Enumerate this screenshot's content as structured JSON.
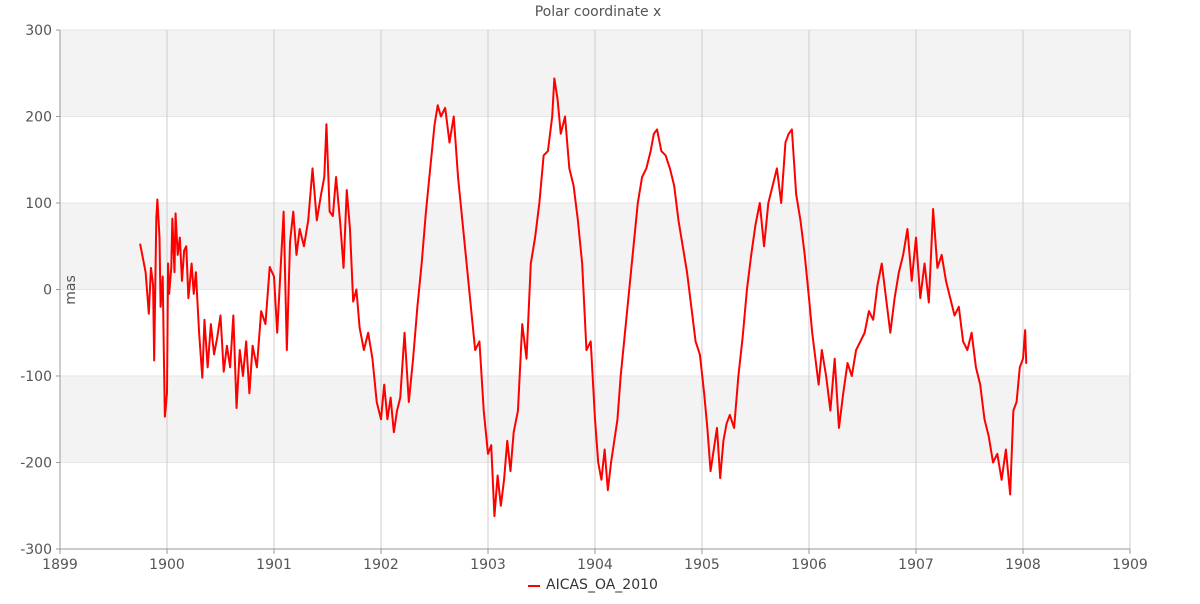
{
  "colors": {
    "series": "#ff0000",
    "band": "#f3f3f3",
    "grid_major": "#cccccc",
    "axis": "#999999"
  },
  "chart_data": {
    "type": "line",
    "title": "Polar coordinate x",
    "xlabel": "",
    "ylabel": "mas",
    "xlim": [
      1899,
      1909
    ],
    "ylim": [
      -300,
      300
    ],
    "x_ticks": [
      1899,
      1900,
      1901,
      1902,
      1903,
      1904,
      1905,
      1906,
      1907,
      1908,
      1909
    ],
    "y_ticks": [
      -300,
      -200,
      -100,
      0,
      100,
      200,
      300
    ],
    "grid": true,
    "alternating_bands": true,
    "legend": "bottom-center",
    "series": [
      {
        "name": "AICAS_OA_2010",
        "color": "#ff0000",
        "points": [
          [
            1899.75,
            52
          ],
          [
            1899.8,
            20
          ],
          [
            1899.83,
            -28
          ],
          [
            1899.85,
            25
          ],
          [
            1899.87,
            5
          ],
          [
            1899.88,
            -82
          ],
          [
            1899.9,
            82
          ],
          [
            1899.91,
            104
          ],
          [
            1899.93,
            60
          ],
          [
            1899.94,
            -20
          ],
          [
            1899.96,
            15
          ],
          [
            1899.97,
            -70
          ],
          [
            1899.98,
            -147
          ],
          [
            1900.0,
            -120
          ],
          [
            1900.01,
            30
          ],
          [
            1900.02,
            -5
          ],
          [
            1900.04,
            25
          ],
          [
            1900.05,
            82
          ],
          [
            1900.07,
            20
          ],
          [
            1900.08,
            88
          ],
          [
            1900.1,
            40
          ],
          [
            1900.12,
            60
          ],
          [
            1900.14,
            10
          ],
          [
            1900.16,
            45
          ],
          [
            1900.18,
            50
          ],
          [
            1900.2,
            -10
          ],
          [
            1900.23,
            30
          ],
          [
            1900.25,
            -5
          ],
          [
            1900.27,
            20
          ],
          [
            1900.3,
            -50
          ],
          [
            1900.33,
            -102
          ],
          [
            1900.35,
            -35
          ],
          [
            1900.38,
            -90
          ],
          [
            1900.41,
            -40
          ],
          [
            1900.44,
            -75
          ],
          [
            1900.47,
            -55
          ],
          [
            1900.5,
            -30
          ],
          [
            1900.53,
            -95
          ],
          [
            1900.56,
            -65
          ],
          [
            1900.59,
            -90
          ],
          [
            1900.62,
            -30
          ],
          [
            1900.65,
            -137
          ],
          [
            1900.68,
            -70
          ],
          [
            1900.71,
            -100
          ],
          [
            1900.74,
            -60
          ],
          [
            1900.77,
            -120
          ],
          [
            1900.8,
            -65
          ],
          [
            1900.84,
            -90
          ],
          [
            1900.88,
            -25
          ],
          [
            1900.92,
            -40
          ],
          [
            1900.96,
            26
          ],
          [
            1901.0,
            15
          ],
          [
            1901.03,
            -50
          ],
          [
            1901.06,
            20
          ],
          [
            1901.09,
            90
          ],
          [
            1901.12,
            -70
          ],
          [
            1901.15,
            55
          ],
          [
            1901.18,
            90
          ],
          [
            1901.21,
            40
          ],
          [
            1901.24,
            70
          ],
          [
            1901.28,
            50
          ],
          [
            1901.32,
            80
          ],
          [
            1901.36,
            140
          ],
          [
            1901.4,
            80
          ],
          [
            1901.44,
            110
          ],
          [
            1901.47,
            130
          ],
          [
            1901.49,
            191
          ],
          [
            1901.52,
            90
          ],
          [
            1901.55,
            85
          ],
          [
            1901.58,
            130
          ],
          [
            1901.62,
            75
          ],
          [
            1901.65,
            25
          ],
          [
            1901.68,
            115
          ],
          [
            1901.71,
            70
          ],
          [
            1901.74,
            -14
          ],
          [
            1901.77,
            0
          ],
          [
            1901.8,
            -44
          ],
          [
            1901.84,
            -70
          ],
          [
            1901.88,
            -50
          ],
          [
            1901.92,
            -80
          ],
          [
            1901.96,
            -130
          ],
          [
            1902.0,
            -150
          ],
          [
            1902.03,
            -110
          ],
          [
            1902.06,
            -150
          ],
          [
            1902.09,
            -125
          ],
          [
            1902.12,
            -165
          ],
          [
            1902.15,
            -140
          ],
          [
            1902.18,
            -125
          ],
          [
            1902.22,
            -50
          ],
          [
            1902.26,
            -130
          ],
          [
            1902.3,
            -80
          ],
          [
            1902.34,
            -20
          ],
          [
            1902.38,
            30
          ],
          [
            1902.42,
            90
          ],
          [
            1902.46,
            140
          ],
          [
            1902.5,
            190
          ],
          [
            1902.53,
            213
          ],
          [
            1902.56,
            200
          ],
          [
            1902.6,
            210
          ],
          [
            1902.64,
            170
          ],
          [
            1902.68,
            200
          ],
          [
            1902.72,
            130
          ],
          [
            1902.76,
            80
          ],
          [
            1902.8,
            30
          ],
          [
            1902.84,
            -20
          ],
          [
            1902.88,
            -70
          ],
          [
            1902.92,
            -60
          ],
          [
            1902.96,
            -140
          ],
          [
            1903.0,
            -190
          ],
          [
            1903.03,
            -180
          ],
          [
            1903.06,
            -262
          ],
          [
            1903.09,
            -215
          ],
          [
            1903.12,
            -250
          ],
          [
            1903.15,
            -220
          ],
          [
            1903.18,
            -175
          ],
          [
            1903.21,
            -210
          ],
          [
            1903.24,
            -165
          ],
          [
            1903.28,
            -140
          ],
          [
            1903.32,
            -40
          ],
          [
            1903.36,
            -80
          ],
          [
            1903.4,
            30
          ],
          [
            1903.44,
            60
          ],
          [
            1903.48,
            100
          ],
          [
            1903.52,
            155
          ],
          [
            1903.56,
            160
          ],
          [
            1903.6,
            200
          ],
          [
            1903.62,
            244
          ],
          [
            1903.65,
            220
          ],
          [
            1903.68,
            180
          ],
          [
            1903.72,
            200
          ],
          [
            1903.76,
            140
          ],
          [
            1903.8,
            120
          ],
          [
            1903.84,
            80
          ],
          [
            1903.88,
            30
          ],
          [
            1903.92,
            -70
          ],
          [
            1903.96,
            -60
          ],
          [
            1904.0,
            -150
          ],
          [
            1904.03,
            -200
          ],
          [
            1904.06,
            -220
          ],
          [
            1904.09,
            -185
          ],
          [
            1904.12,
            -232
          ],
          [
            1904.15,
            -200
          ],
          [
            1904.18,
            -175
          ],
          [
            1904.21,
            -150
          ],
          [
            1904.24,
            -100
          ],
          [
            1904.28,
            -50
          ],
          [
            1904.32,
            0
          ],
          [
            1904.36,
            50
          ],
          [
            1904.4,
            100
          ],
          [
            1904.44,
            130
          ],
          [
            1904.48,
            140
          ],
          [
            1904.52,
            160
          ],
          [
            1904.55,
            180
          ],
          [
            1904.58,
            185
          ],
          [
            1904.62,
            160
          ],
          [
            1904.66,
            155
          ],
          [
            1904.7,
            140
          ],
          [
            1904.74,
            120
          ],
          [
            1904.78,
            80
          ],
          [
            1904.82,
            50
          ],
          [
            1904.86,
            20
          ],
          [
            1904.9,
            -20
          ],
          [
            1904.94,
            -60
          ],
          [
            1904.98,
            -75
          ],
          [
            1905.02,
            -120
          ],
          [
            1905.05,
            -160
          ],
          [
            1905.08,
            -210
          ],
          [
            1905.11,
            -185
          ],
          [
            1905.14,
            -160
          ],
          [
            1905.17,
            -218
          ],
          [
            1905.2,
            -175
          ],
          [
            1905.23,
            -155
          ],
          [
            1905.26,
            -145
          ],
          [
            1905.3,
            -160
          ],
          [
            1905.34,
            -100
          ],
          [
            1905.38,
            -55
          ],
          [
            1905.42,
            0
          ],
          [
            1905.46,
            40
          ],
          [
            1905.5,
            75
          ],
          [
            1905.54,
            100
          ],
          [
            1905.58,
            50
          ],
          [
            1905.62,
            100
          ],
          [
            1905.66,
            120
          ],
          [
            1905.7,
            140
          ],
          [
            1905.74,
            100
          ],
          [
            1905.78,
            170
          ],
          [
            1905.81,
            180
          ],
          [
            1905.84,
            185
          ],
          [
            1905.88,
            110
          ],
          [
            1905.92,
            80
          ],
          [
            1905.96,
            40
          ],
          [
            1906.0,
            -10
          ],
          [
            1906.03,
            -50
          ],
          [
            1906.06,
            -80
          ],
          [
            1906.09,
            -110
          ],
          [
            1906.12,
            -70
          ],
          [
            1906.16,
            -100
          ],
          [
            1906.2,
            -140
          ],
          [
            1906.24,
            -80
          ],
          [
            1906.28,
            -160
          ],
          [
            1906.32,
            -120
          ],
          [
            1906.36,
            -85
          ],
          [
            1906.4,
            -100
          ],
          [
            1906.44,
            -70
          ],
          [
            1906.48,
            -60
          ],
          [
            1906.52,
            -50
          ],
          [
            1906.56,
            -25
          ],
          [
            1906.6,
            -35
          ],
          [
            1906.64,
            5
          ],
          [
            1906.68,
            30
          ],
          [
            1906.72,
            -10
          ],
          [
            1906.76,
            -50
          ],
          [
            1906.8,
            -10
          ],
          [
            1906.84,
            20
          ],
          [
            1906.88,
            40
          ],
          [
            1906.92,
            70
          ],
          [
            1906.96,
            10
          ],
          [
            1907.0,
            60
          ],
          [
            1907.04,
            -10
          ],
          [
            1907.08,
            30
          ],
          [
            1907.12,
            -15
          ],
          [
            1907.16,
            93
          ],
          [
            1907.2,
            25
          ],
          [
            1907.24,
            40
          ],
          [
            1907.28,
            10
          ],
          [
            1907.32,
            -10
          ],
          [
            1907.36,
            -30
          ],
          [
            1907.4,
            -20
          ],
          [
            1907.44,
            -60
          ],
          [
            1907.48,
            -70
          ],
          [
            1907.52,
            -50
          ],
          [
            1907.56,
            -90
          ],
          [
            1907.6,
            -110
          ],
          [
            1907.64,
            -150
          ],
          [
            1907.68,
            -170
          ],
          [
            1907.72,
            -200
          ],
          [
            1907.76,
            -190
          ],
          [
            1907.8,
            -220
          ],
          [
            1907.84,
            -185
          ],
          [
            1907.88,
            -237
          ],
          [
            1907.91,
            -140
          ],
          [
            1907.94,
            -130
          ],
          [
            1907.97,
            -90
          ],
          [
            1908.0,
            -80
          ],
          [
            1908.02,
            -47
          ],
          [
            1908.03,
            -85
          ]
        ]
      }
    ]
  }
}
